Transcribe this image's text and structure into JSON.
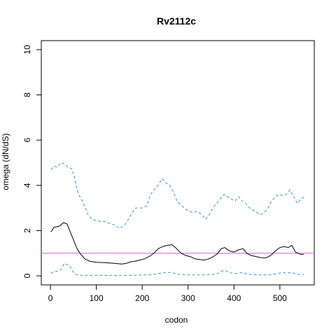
{
  "chart_data": {
    "type": "line",
    "title": "Rv2112c",
    "xlabel": "codon",
    "ylabel": "omega (dN/dS)",
    "xlim": [
      -20,
      575
    ],
    "ylim": [
      -0.4,
      10.4
    ],
    "xticks": [
      0,
      100,
      200,
      300,
      400,
      500
    ],
    "yticks": [
      0,
      2,
      4,
      6,
      8,
      10
    ],
    "grid": false,
    "reference_line": {
      "y": 1,
      "color": "#cc66cc"
    },
    "series": [
      {
        "style": "solid",
        "color": "#000000",
        "points": [
          [
            1,
            1.95
          ],
          [
            8,
            2.15
          ],
          [
            20,
            2.2
          ],
          [
            28,
            2.35
          ],
          [
            36,
            2.3
          ],
          [
            42,
            2.0
          ],
          [
            50,
            1.6
          ],
          [
            58,
            1.2
          ],
          [
            66,
            0.95
          ],
          [
            75,
            0.75
          ],
          [
            85,
            0.65
          ],
          [
            100,
            0.6
          ],
          [
            120,
            0.58
          ],
          [
            140,
            0.55
          ],
          [
            155,
            0.52
          ],
          [
            165,
            0.55
          ],
          [
            175,
            0.62
          ],
          [
            185,
            0.65
          ],
          [
            195,
            0.7
          ],
          [
            205,
            0.75
          ],
          [
            215,
            0.85
          ],
          [
            225,
            1.0
          ],
          [
            235,
            1.2
          ],
          [
            245,
            1.3
          ],
          [
            255,
            1.35
          ],
          [
            265,
            1.38
          ],
          [
            275,
            1.2
          ],
          [
            285,
            1.0
          ],
          [
            295,
            0.9
          ],
          [
            305,
            0.85
          ],
          [
            315,
            0.75
          ],
          [
            325,
            0.72
          ],
          [
            335,
            0.7
          ],
          [
            345,
            0.75
          ],
          [
            355,
            0.85
          ],
          [
            365,
            1.0
          ],
          [
            372,
            1.2
          ],
          [
            380,
            1.25
          ],
          [
            390,
            1.1
          ],
          [
            400,
            1.05
          ],
          [
            410,
            1.15
          ],
          [
            420,
            1.2
          ],
          [
            428,
            1.0
          ],
          [
            438,
            0.9
          ],
          [
            448,
            0.85
          ],
          [
            460,
            0.8
          ],
          [
            470,
            0.8
          ],
          [
            480,
            0.9
          ],
          [
            490,
            1.1
          ],
          [
            500,
            1.25
          ],
          [
            510,
            1.3
          ],
          [
            518,
            1.25
          ],
          [
            526,
            1.35
          ],
          [
            534,
            1.05
          ],
          [
            545,
            0.95
          ],
          [
            552,
            0.95
          ]
        ]
      },
      {
        "style": "dashed",
        "color": "#3399dd",
        "points": [
          [
            1,
            4.7
          ],
          [
            8,
            4.85
          ],
          [
            15,
            4.8
          ],
          [
            22,
            5.0
          ],
          [
            30,
            4.95
          ],
          [
            38,
            4.8
          ],
          [
            46,
            4.75
          ],
          [
            52,
            4.4
          ],
          [
            58,
            3.8
          ],
          [
            64,
            3.5
          ],
          [
            70,
            3.3
          ],
          [
            76,
            3.0
          ],
          [
            82,
            2.7
          ],
          [
            90,
            2.5
          ],
          [
            100,
            2.45
          ],
          [
            110,
            2.4
          ],
          [
            120,
            2.4
          ],
          [
            130,
            2.3
          ],
          [
            140,
            2.25
          ],
          [
            150,
            2.1
          ],
          [
            160,
            2.2
          ],
          [
            170,
            2.5
          ],
          [
            178,
            2.8
          ],
          [
            186,
            3.0
          ],
          [
            200,
            3.0
          ],
          [
            210,
            3.1
          ],
          [
            218,
            3.6
          ],
          [
            226,
            3.8
          ],
          [
            234,
            4.0
          ],
          [
            244,
            4.3
          ],
          [
            252,
            4.1
          ],
          [
            260,
            4.0
          ],
          [
            268,
            3.7
          ],
          [
            276,
            3.3
          ],
          [
            286,
            3.1
          ],
          [
            298,
            2.9
          ],
          [
            310,
            2.8
          ],
          [
            320,
            2.85
          ],
          [
            330,
            2.7
          ],
          [
            338,
            2.5
          ],
          [
            346,
            2.7
          ],
          [
            354,
            3.0
          ],
          [
            362,
            3.2
          ],
          [
            370,
            3.4
          ],
          [
            378,
            3.6
          ],
          [
            386,
            3.5
          ],
          [
            394,
            3.4
          ],
          [
            402,
            3.3
          ],
          [
            410,
            3.5
          ],
          [
            418,
            3.3
          ],
          [
            426,
            3.2
          ],
          [
            434,
            3.0
          ],
          [
            442,
            2.9
          ],
          [
            450,
            2.8
          ],
          [
            458,
            2.7
          ],
          [
            466,
            2.8
          ],
          [
            474,
            3.0
          ],
          [
            482,
            3.3
          ],
          [
            490,
            3.5
          ],
          [
            498,
            3.6
          ],
          [
            506,
            3.55
          ],
          [
            514,
            3.6
          ],
          [
            522,
            3.8
          ],
          [
            530,
            3.5
          ],
          [
            538,
            3.2
          ],
          [
            546,
            3.4
          ],
          [
            554,
            3.5
          ]
        ]
      },
      {
        "style": "dashed",
        "color": "#3399dd",
        "points": [
          [
            1,
            0.1
          ],
          [
            8,
            0.2
          ],
          [
            16,
            0.2
          ],
          [
            24,
            0.3
          ],
          [
            30,
            0.55
          ],
          [
            36,
            0.5
          ],
          [
            42,
            0.45
          ],
          [
            48,
            0.2
          ],
          [
            56,
            0.05
          ],
          [
            70,
            0.02
          ],
          [
            100,
            0.02
          ],
          [
            150,
            0.02
          ],
          [
            180,
            0.02
          ],
          [
            200,
            0.04
          ],
          [
            220,
            0.05
          ],
          [
            235,
            0.1
          ],
          [
            250,
            0.15
          ],
          [
            262,
            0.15
          ],
          [
            275,
            0.08
          ],
          [
            290,
            0.05
          ],
          [
            310,
            0.04
          ],
          [
            330,
            0.04
          ],
          [
            350,
            0.05
          ],
          [
            365,
            0.1
          ],
          [
            372,
            0.2
          ],
          [
            380,
            0.25
          ],
          [
            390,
            0.15
          ],
          [
            400,
            0.1
          ],
          [
            410,
            0.12
          ],
          [
            418,
            0.15
          ],
          [
            428,
            0.08
          ],
          [
            440,
            0.05
          ],
          [
            460,
            0.04
          ],
          [
            480,
            0.05
          ],
          [
            495,
            0.1
          ],
          [
            505,
            0.15
          ],
          [
            515,
            0.12
          ],
          [
            525,
            0.15
          ],
          [
            535,
            0.08
          ],
          [
            545,
            0.05
          ],
          [
            552,
            0.05
          ]
        ]
      }
    ]
  }
}
